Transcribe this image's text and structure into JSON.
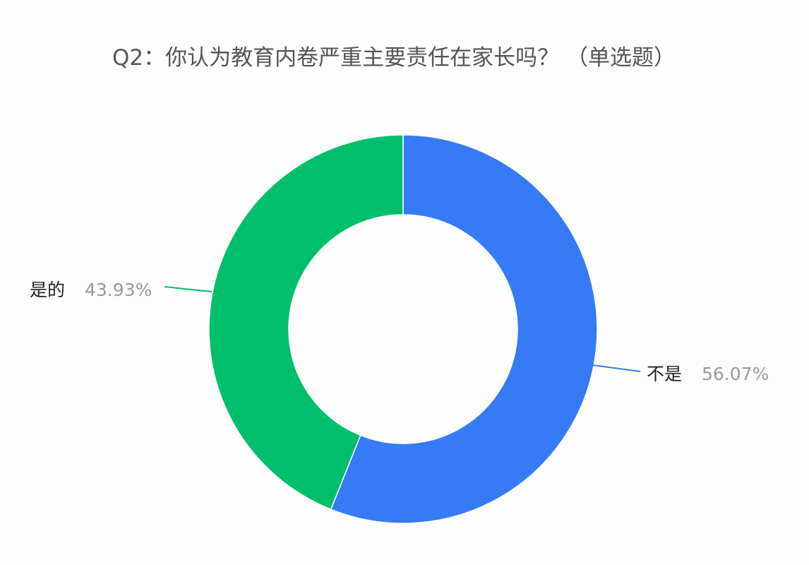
{
  "chart_data": {
    "type": "pie",
    "variant": "donut",
    "title": "Q2：你认为教育内卷严重主要责任在家长吗？ （单选题）",
    "slices": [
      {
        "name": "不是",
        "value": 56.07,
        "label": "56.07%",
        "color": "#367bf5"
      },
      {
        "name": "是的",
        "value": 43.93,
        "label": "43.93%",
        "color": "#00bf6b"
      }
    ],
    "start_angle": "12 o'clock",
    "direction": "clockwise",
    "legend": "none",
    "label_text_color": "#222222",
    "percent_text_color": "#9a9a9a"
  }
}
